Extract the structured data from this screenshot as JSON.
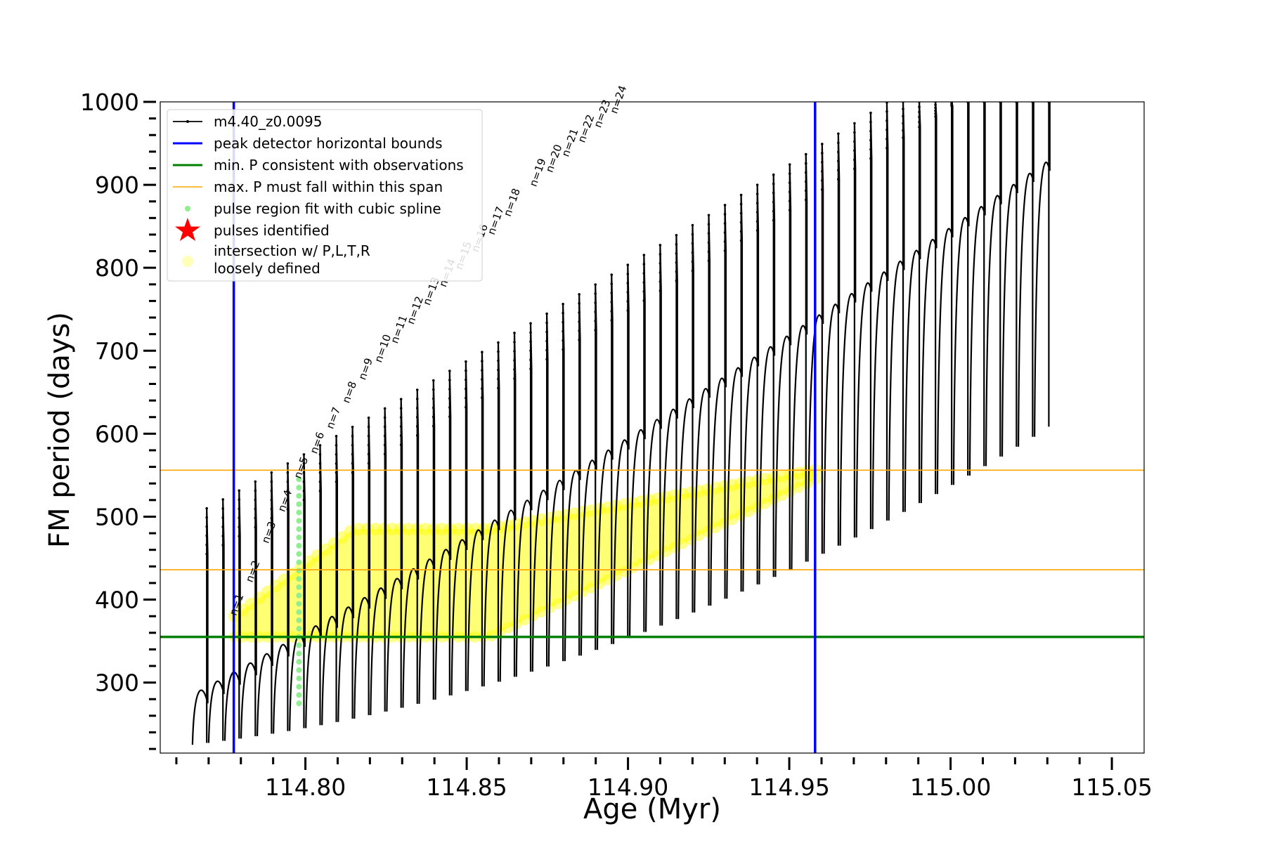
{
  "chart_data": {
    "type": "line",
    "xlabel": "Age (Myr)",
    "ylabel": "FM period (days)",
    "xlim": [
      114.755,
      115.06
    ],
    "ylim": [
      215,
      1000
    ],
    "x_ticks": [
      "114.80",
      "114.85",
      "114.90",
      "114.95",
      "115.00",
      "115.05"
    ],
    "x_tick_values": [
      114.8,
      114.85,
      114.9,
      114.95,
      115.0,
      115.05
    ],
    "y_ticks": [
      "300",
      "400",
      "500",
      "600",
      "700",
      "800",
      "900",
      "1000"
    ],
    "y_tick_values": [
      300,
      400,
      500,
      600,
      700,
      800,
      900,
      1000
    ],
    "grid": false,
    "legend_position": "top-left",
    "legend": [
      {
        "label": "m4.40_z0.0095",
        "style": "black-line-dots",
        "color": "#000000"
      },
      {
        "label": "peak detector horizontal bounds",
        "style": "line",
        "color": "#0000ff"
      },
      {
        "label": "min. P consistent with observations",
        "style": "line",
        "color": "#008000"
      },
      {
        "label": "max. P must fall within this span",
        "style": "thin-line",
        "color": "#ffa500"
      },
      {
        "label": "pulse region fit with cubic spline",
        "style": "dot",
        "color": "#90ee90"
      },
      {
        "label": "pulses identified",
        "style": "star",
        "color": "#ff0000"
      },
      {
        "label": "intersection w/ P,L,T,R",
        "label_line2": "loosely defined",
        "style": "circle",
        "color": "#ffff99"
      }
    ],
    "vertical_lines": {
      "color": "#0000ff",
      "x": [
        114.7778,
        114.958
      ]
    },
    "min_period_line": {
      "color": "#008000",
      "y": 355
    },
    "max_period_span": {
      "color": "#ffa500",
      "y": [
        436,
        556
      ]
    },
    "series_name": "m4.40_z0.0095",
    "pulse_sequence": {
      "first_age": 114.765,
      "spacing": 0.00502,
      "count": 53,
      "trough_start": 225,
      "trough_slope": 2.2,
      "trough_accel": 0.095,
      "peak_start": 300,
      "peak_slope": 11.2,
      "peak_accel": 0.022,
      "spike_base_start": 455,
      "spike_base_slope": 10.7,
      "spike_base_accel": 0.0226
    },
    "pulse_labels": [
      {
        "label": "n=1",
        "x": 114.7785,
        "y": 380
      },
      {
        "label": "n=2",
        "x": 114.7835,
        "y": 420
      },
      {
        "label": "n=3",
        "x": 114.7885,
        "y": 467
      },
      {
        "label": "n=4",
        "x": 114.7935,
        "y": 505
      },
      {
        "label": "n=5",
        "x": 114.7985,
        "y": 545
      },
      {
        "label": "n=6",
        "x": 114.8035,
        "y": 575
      },
      {
        "label": "n=7",
        "x": 114.8085,
        "y": 605
      },
      {
        "label": "n=8",
        "x": 114.8135,
        "y": 636
      },
      {
        "label": "n=9",
        "x": 114.8185,
        "y": 664
      },
      {
        "label": "n=10",
        "x": 114.8235,
        "y": 685
      },
      {
        "label": "n=11",
        "x": 114.8285,
        "y": 708
      },
      {
        "label": "n=12",
        "x": 114.8335,
        "y": 731
      },
      {
        "label": "n=13",
        "x": 114.8385,
        "y": 754
      },
      {
        "label": "n=14",
        "x": 114.8435,
        "y": 776
      },
      {
        "label": "n=15",
        "x": 114.8485,
        "y": 797
      },
      {
        "label": "n=16",
        "x": 114.8535,
        "y": 818
      },
      {
        "label": "n=17",
        "x": 114.8585,
        "y": 839
      },
      {
        "label": "n=18",
        "x": 114.8635,
        "y": 861
      },
      {
        "label": "n=19",
        "x": 114.8715,
        "y": 897
      },
      {
        "label": "n=20",
        "x": 114.8765,
        "y": 914
      },
      {
        "label": "n=21",
        "x": 114.8815,
        "y": 933
      },
      {
        "label": "n=22",
        "x": 114.8865,
        "y": 950
      },
      {
        "label": "n=23",
        "x": 114.8915,
        "y": 968
      },
      {
        "label": "n=24",
        "x": 114.8965,
        "y": 985
      }
    ],
    "spline_points": {
      "x": 114.798,
      "y_start": 275,
      "y_end": 545,
      "color": "#90ee90"
    },
    "intersection_region": {
      "color": "#ffff00",
      "x_start": 114.778,
      "x_end": 114.958,
      "bottom_left": 355,
      "bottom_right": 545,
      "top_left": 380,
      "top_flat": 485,
      "flat_from": 114.815,
      "flat_to": 114.857,
      "top_right": 556
    }
  }
}
